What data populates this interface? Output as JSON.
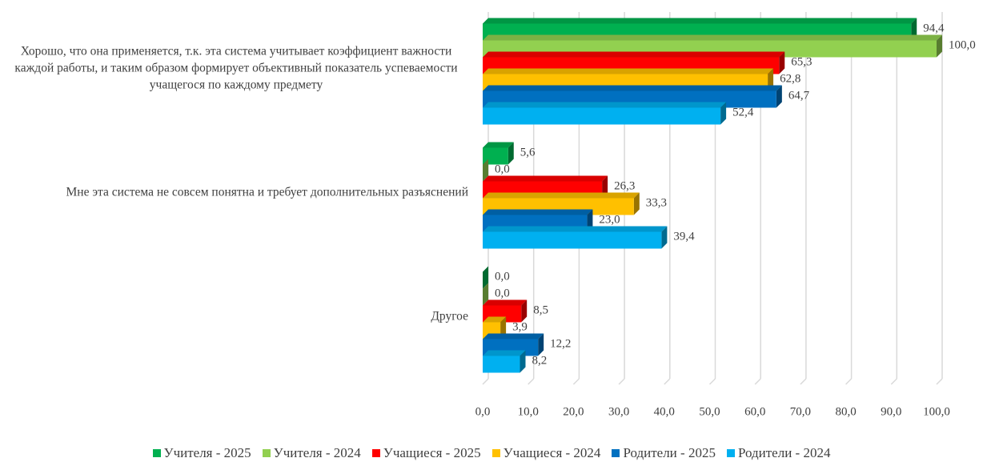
{
  "chart_data": {
    "type": "bar",
    "orientation": "horizontal",
    "3d": true,
    "categories": [
      "Хорошо, что она применяется, т.к. эта система учитывает коэффициент важности каждой работы, и таким образом формирует объективный показатель успеваемости учащегося по каждому предмету",
      "Мне эта система не совсем понятна и требует дополнительных разъяснений",
      "Другое"
    ],
    "series": [
      {
        "name": "Учителя - 2025",
        "color": "#00b050",
        "values": [
          94.4,
          5.6,
          0
        ],
        "value_labels": [
          "94,4",
          "5,6",
          "0,0"
        ]
      },
      {
        "name": "Учителя - 2024",
        "color": "#92d050",
        "values": [
          100,
          0,
          0
        ],
        "value_labels": [
          "100,0",
          "0,0",
          "0,0"
        ]
      },
      {
        "name": "Учащиеся - 2025",
        "color": "#ff0000",
        "values": [
          65.3,
          26.3,
          8.5
        ],
        "value_labels": [
          "65,3",
          "26,3",
          "8,5"
        ]
      },
      {
        "name": "Учащиеся - 2024",
        "color": "#ffc000",
        "values": [
          62.8,
          33.3,
          3.9
        ],
        "value_labels": [
          "62,8",
          "33,3",
          "3,9"
        ]
      },
      {
        "name": "Родители - 2025",
        "color": "#0070c0",
        "values": [
          64.7,
          23,
          12.2
        ],
        "value_labels": [
          "64,7",
          "23,0",
          "12,2"
        ]
      },
      {
        "name": "Родители - 2024",
        "color": "#00b0f0",
        "values": [
          52.4,
          39.4,
          8.2
        ],
        "value_labels": [
          "52,4",
          "39,4",
          "8,2"
        ]
      }
    ],
    "xlim": [
      0,
      100
    ],
    "xticks": [
      {
        "value": 0,
        "label": "0,0"
      },
      {
        "value": 10,
        "label": "10,0"
      },
      {
        "value": 20,
        "label": "20,0"
      },
      {
        "value": 30,
        "label": "30,0"
      },
      {
        "value": 40,
        "label": "40,0"
      },
      {
        "value": 50,
        "label": "50,0"
      },
      {
        "value": 60,
        "label": "60,0"
      },
      {
        "value": 70,
        "label": "70,0"
      },
      {
        "value": 80,
        "label": "80,0"
      },
      {
        "value": 90,
        "label": "90,0"
      },
      {
        "value": 100,
        "label": "100,0"
      }
    ],
    "grid": true,
    "legend": "bottom"
  }
}
